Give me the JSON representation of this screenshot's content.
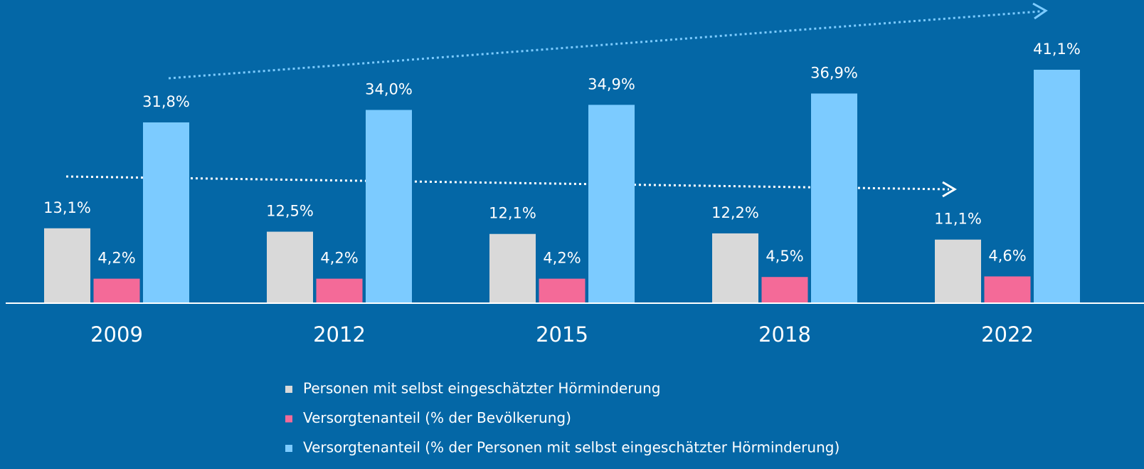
{
  "chart_data": {
    "type": "bar",
    "categories": [
      "2009",
      "2012",
      "2015",
      "2018",
      "2022"
    ],
    "series": [
      {
        "name": "Personen mit selbst eingeschätzter Hörminderung",
        "color": "#d9d9d9",
        "values": [
          13.1,
          12.5,
          12.1,
          12.2,
          11.1
        ],
        "value_labels": [
          "13,1%",
          "12,5%",
          "12,1%",
          "12,2%",
          "11,1%"
        ]
      },
      {
        "name": "Versorgtenanteil (% der Bevölkerung)",
        "color": "#f46a98",
        "values": [
          4.2,
          4.2,
          4.2,
          4.5,
          4.6
        ],
        "value_labels": [
          "4,2%",
          "4,2%",
          "4,2%",
          "4,5%",
          "4,6%"
        ]
      },
      {
        "name": "Versorgtenanteil (% der Personen mit selbst eingeschätzter Hörminderung)",
        "color": "#7ccbff",
        "values": [
          31.8,
          34.0,
          34.9,
          36.9,
          41.1
        ],
        "value_labels": [
          "31,8%",
          "34,0%",
          "34,9%",
          "36,9%",
          "41,1%"
        ]
      }
    ]
  }
}
